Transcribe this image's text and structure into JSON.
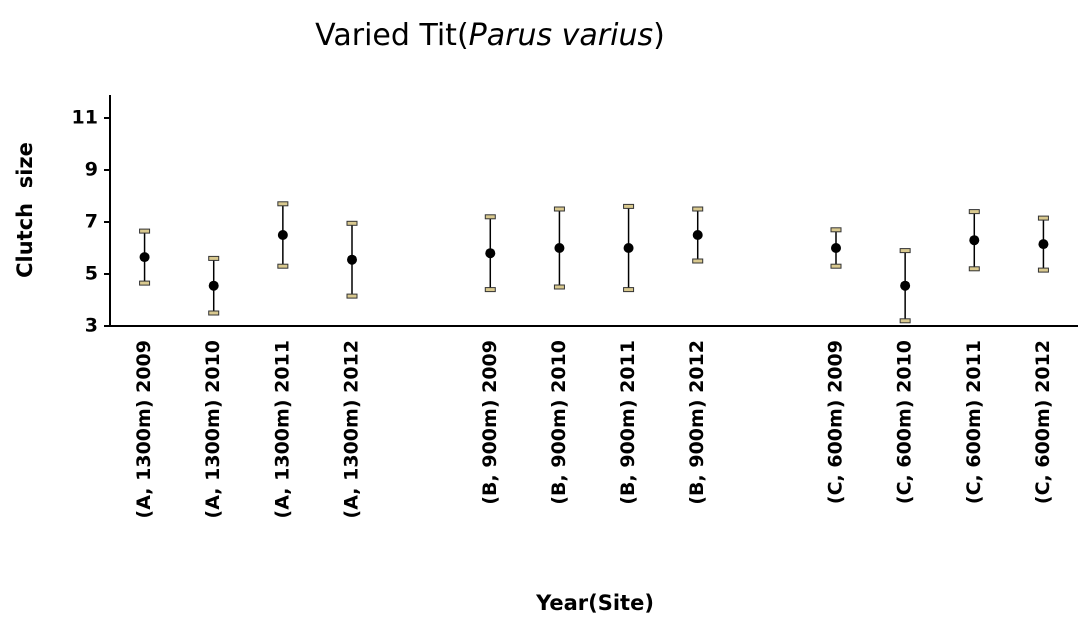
{
  "chart_data": {
    "type": "errorbar",
    "title_parts": [
      "Varied Tit(",
      "Parus varius",
      ")"
    ],
    "x_label": "Year(Site)",
    "y_label": "Clutch  size",
    "categories": [
      "(A, 1300m) 2009",
      "(A, 1300m) 2010",
      "(A, 1300m) 2011",
      "(A, 1300m) 2012",
      null,
      "(B, 900m) 2009",
      "(B, 900m) 2010",
      "(B, 900m) 2011",
      "(B, 900m) 2012",
      null,
      "(C, 600m) 2009",
      "(C, 600m) 2010",
      "(C, 600m) 2011",
      "(C, 600m) 2012"
    ],
    "values": [
      5.65,
      4.55,
      6.5,
      5.55,
      null,
      5.8,
      6.0,
      6.0,
      6.5,
      null,
      6.0,
      4.55,
      6.3,
      6.15
    ],
    "errors": [
      1.0,
      1.05,
      1.2,
      1.4,
      null,
      1.4,
      1.5,
      1.6,
      1.0,
      null,
      0.7,
      1.35,
      1.1,
      1.0
    ],
    "color": "#000000",
    "cap_color": "#d9c98f",
    "ylim": [
      3,
      12
    ],
    "yticks": [
      3,
      5,
      7,
      9,
      11
    ]
  }
}
